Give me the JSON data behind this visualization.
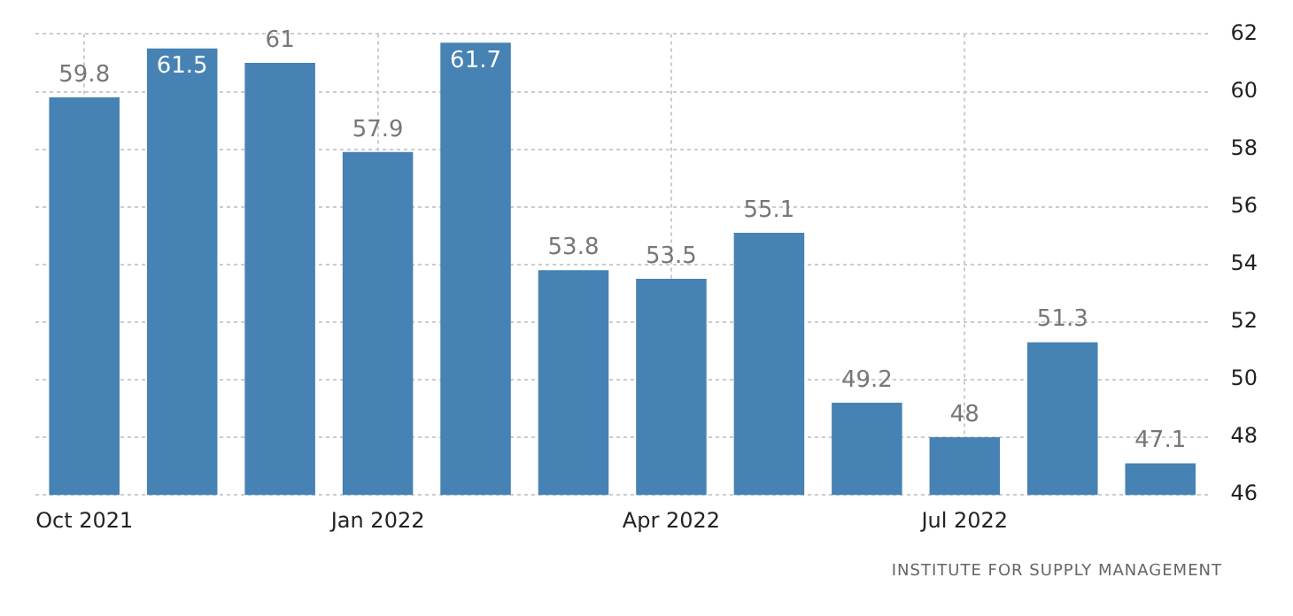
{
  "chart_data": {
    "type": "bar",
    "categories": [
      "Oct 2021",
      null,
      null,
      "Jan 2022",
      null,
      null,
      "Apr 2022",
      null,
      null,
      "Jul 2022",
      null,
      null
    ],
    "values": [
      59.8,
      61.5,
      61,
      57.9,
      61.7,
      53.8,
      53.5,
      55.1,
      49.2,
      48,
      51.3,
      47.1
    ],
    "color": "#4682b4",
    "ylim": [
      46,
      62
    ],
    "yticks": [
      46,
      48,
      50,
      52,
      54,
      56,
      58,
      60,
      62
    ],
    "grid": true,
    "data_labels": true,
    "legend": false,
    "annotations": [
      "INSTITUTE FOR SUPPLY MANAGEMENT"
    ]
  }
}
